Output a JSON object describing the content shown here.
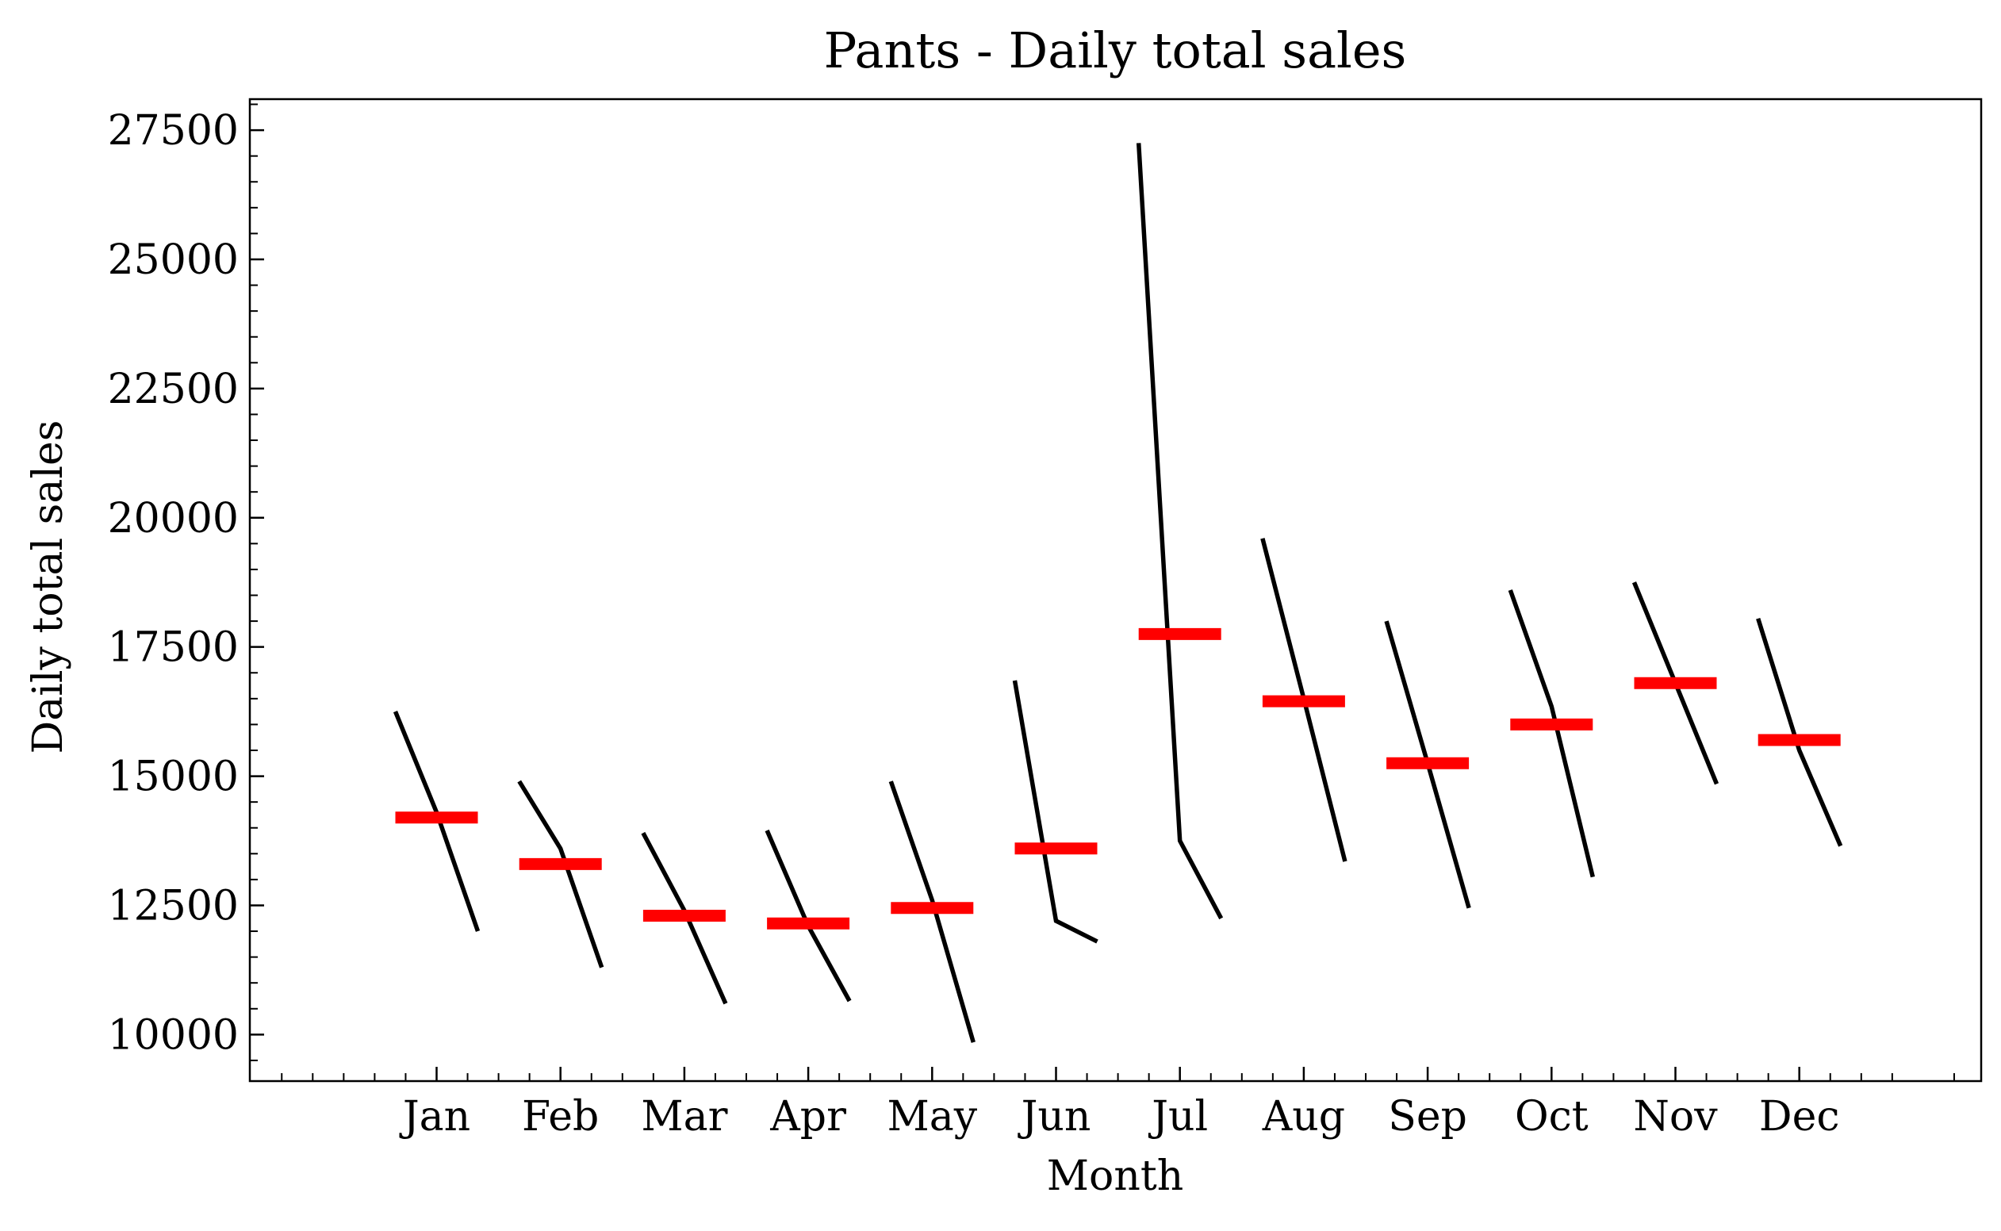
{
  "chart_data": {
    "type": "line",
    "title": "Pants - Daily total sales",
    "xlabel": "Month",
    "ylabel": "Daily total sales",
    "categories": [
      "Jan",
      "Feb",
      "Mar",
      "Apr",
      "May",
      "Jun",
      "Jul",
      "Aug",
      "Sep",
      "Oct",
      "Nov",
      "Dec"
    ],
    "ylim": [
      9100,
      28100
    ],
    "yticks": [
      10000,
      12500,
      15000,
      17500,
      20000,
      22500,
      25000,
      27500
    ],
    "yticklabels": [
      "10000",
      "12500",
      "15000",
      "17500",
      "20000",
      "22500",
      "25000",
      "27500"
    ],
    "grid": false,
    "series": [
      {
        "values": [
          [
            16250,
            14300,
            12000
          ],
          [
            14900,
            13600,
            11300
          ],
          [
            13900,
            12400,
            10600
          ],
          [
            13950,
            12100,
            10650
          ],
          [
            14900,
            12600,
            9850
          ],
          [
            16850,
            12200,
            11800
          ],
          [
            27250,
            13750,
            12250
          ],
          [
            19600,
            16500,
            13350
          ],
          [
            18000,
            15250,
            12450
          ],
          [
            18600,
            16350,
            13050
          ],
          [
            18750,
            16800,
            14850
          ],
          [
            18050,
            15500,
            13650
          ]
        ]
      }
    ],
    "means": [
      14200,
      13300,
      12300,
      12150,
      12450,
      13600,
      17750,
      16450,
      15250,
      16000,
      16800,
      15700
    ],
    "colors": {
      "line": "#000000",
      "mean": "#ff0000"
    }
  }
}
